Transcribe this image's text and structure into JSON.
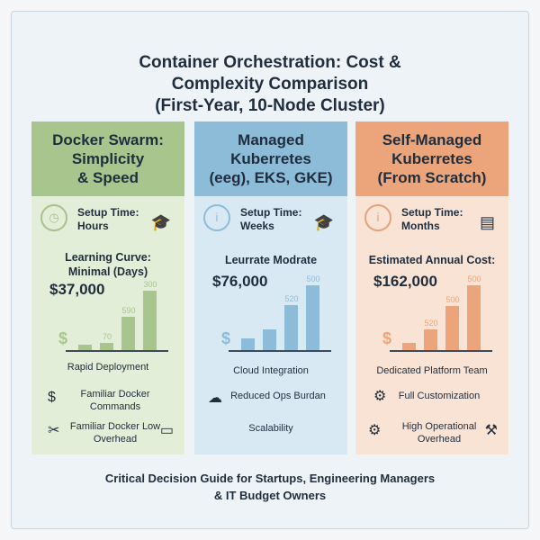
{
  "title": [
    "Container Orchestration: Cost &",
    "Complexity Comparison",
    "(First-Year, 10-Node Cluster)"
  ],
  "panels": [
    {
      "title": [
        "Docker Swarm:",
        "Simplicity",
        "& Speed"
      ],
      "setup_label": "Setup Time:",
      "setup_value": "Hours",
      "subtitle": [
        "Learning Curve:",
        "Minimal (Days)"
      ],
      "cost": "$37,000",
      "chart_data": {
        "type": "bar",
        "values": [
          8,
          11,
          52,
          92
        ],
        "labels": [
          "",
          "70",
          "590",
          "300"
        ]
      },
      "features": [
        "Rapid Deployment",
        "Familiar Docker Commands",
        "Familiar Docker Low Overhead"
      ],
      "colors": {
        "head": "#a9c58e",
        "body": "#e3eed8",
        "bar": "#a9c58e",
        "icon": "#a9bf90"
      }
    },
    {
      "title": [
        "Managed",
        "Kuberretes",
        "(eeg), EKS, GKE)"
      ],
      "setup_label": "Setup Time:",
      "setup_value": "Weeks",
      "subtitle": [
        "Leurrate Modrate"
      ],
      "cost": "$76,000",
      "chart_data": {
        "type": "bar",
        "values": [
          18,
          32,
          70,
          100
        ],
        "labels": [
          "",
          "",
          "520",
          "500"
        ]
      },
      "features": [
        "Cloud Integration",
        "Reduced Ops Burdan",
        "Scalability"
      ],
      "colors": {
        "head": "#8dbcd9",
        "body": "#d9e9f3",
        "bar": "#8dbcd9",
        "icon": "#8dbcd9"
      }
    },
    {
      "title": [
        "Self-Managed",
        "Kuberretes",
        "(From Scratch)"
      ],
      "setup_label": "Setup Time:",
      "setup_value": "Months",
      "subtitle": [
        "Estimated Annual Cost:"
      ],
      "cost": "$162,000",
      "chart_data": {
        "type": "bar",
        "values": [
          11,
          32,
          68,
          100
        ],
        "labels": [
          "",
          "520",
          "500",
          "500"
        ]
      },
      "features": [
        "Dedicated Platform Team",
        "Full Customization",
        "High Operational Overhead"
      ],
      "colors": {
        "head": "#eca47a",
        "body": "#f9e3d5",
        "bar": "#eca47a",
        "icon": "#e6a07a"
      }
    }
  ],
  "footer": [
    "Critical Decision Guide for Startups, Engineering Managers",
    "& IT Budget Owners"
  ]
}
